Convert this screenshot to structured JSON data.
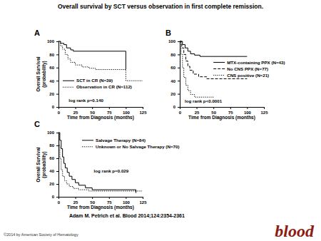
{
  "header": {
    "title": "Overall survival by SCT versus observation in first complete remission."
  },
  "chart_data": [
    {
      "type": "line",
      "panel": "A",
      "xlabel": "Time from Diagnosis (months)",
      "ylabel": [
        "Overall Survival",
        "(probability)"
      ],
      "xlim": [
        0,
        125
      ],
      "ylim": [
        0,
        100
      ],
      "xticks": [
        0,
        25,
        50,
        75,
        100,
        125
      ],
      "yticks": [
        0,
        20,
        40,
        60,
        80,
        100
      ],
      "grid": false,
      "legend": "lower-left",
      "annotation": "log rank p=0.140",
      "series": [
        {
          "name": "SCT in CR (N=39)",
          "color": "#000000",
          "line_style": "solid",
          "x": [
            0,
            3,
            8,
            12,
            18,
            22,
            100
          ],
          "values": [
            100,
            97,
            95,
            90,
            87,
            85,
            57
          ]
        },
        {
          "name": "Observation in CR (N=112)",
          "color": "#000000",
          "line_style": "dotted",
          "x": [
            0,
            3,
            6,
            10,
            14,
            18,
            25,
            35,
            45,
            55,
            100,
            125
          ],
          "values": [
            100,
            93,
            88,
            80,
            73,
            68,
            64,
            61,
            59,
            57,
            40,
            40
          ]
        }
      ]
    },
    {
      "type": "line",
      "panel": "B",
      "xlabel": "Time from Diagnosis (months)",
      "xlim": [
        0,
        125
      ],
      "ylim": [
        0,
        100
      ],
      "xticks": [
        0,
        25,
        50,
        75,
        100,
        125
      ],
      "yticks": [
        0,
        20,
        40,
        60,
        80,
        100
      ],
      "grid": false,
      "legend": "right",
      "annotation": "log rank p<0.0001",
      "series": [
        {
          "name": "MTX-containing PPX (N=43)",
          "color": "#000000",
          "line_style": "solid",
          "x": [
            0,
            4,
            8,
            12,
            16,
            22,
            30,
            100
          ],
          "values": [
            100,
            95,
            90,
            85,
            81,
            79,
            77,
            77
          ]
        },
        {
          "name": "No CNS PPX (N=77)",
          "color": "#000000",
          "line_style": "dashed",
          "x": [
            0,
            3,
            6,
            9,
            12,
            15,
            20,
            28,
            40,
            100
          ],
          "values": [
            100,
            90,
            80,
            70,
            62,
            56,
            50,
            46,
            43,
            43
          ]
        },
        {
          "name": "CNS positive (N=21)",
          "color": "#000000",
          "line_style": "dotted",
          "x": [
            0,
            2,
            4,
            6,
            9,
            12,
            16,
            22,
            50
          ],
          "values": [
            100,
            80,
            60,
            45,
            33,
            25,
            19,
            15,
            15
          ]
        }
      ]
    },
    {
      "type": "line",
      "panel": "C",
      "xlabel": "Time from Diagnosis (months)",
      "ylabel": [
        "Overall Survival",
        "(probability)"
      ],
      "xlim": [
        0,
        125
      ],
      "ylim": [
        0,
        100
      ],
      "xticks": [
        0,
        25,
        50,
        75,
        100,
        125
      ],
      "yticks": [
        0,
        20,
        40,
        60,
        80,
        100
      ],
      "grid": false,
      "legend": "upper-right",
      "annotation": "log rank p=0.029",
      "series": [
        {
          "name": "Salvage Therapy (N=84)",
          "color": "#000000",
          "line_style": "solid",
          "x": [
            0,
            2,
            4,
            6,
            8,
            10,
            13,
            16,
            20,
            25,
            30,
            40,
            50,
            110,
            115
          ],
          "values": [
            100,
            88,
            75,
            62,
            52,
            45,
            38,
            32,
            27,
            22,
            18,
            14,
            11,
            11,
            6
          ]
        },
        {
          "name": "Unknown or No Salvage Therapy (N=70)",
          "color": "#000000",
          "line_style": "dotted",
          "x": [
            0,
            1,
            2,
            4,
            6,
            9,
            12,
            16,
            22,
            30,
            45,
            125
          ],
          "values": [
            100,
            80,
            60,
            42,
            32,
            25,
            20,
            16,
            13,
            11,
            9,
            9
          ]
        }
      ]
    }
  ],
  "footer": {
    "citation": "Adam M. Petrich et al. Blood 2014;124:2354-2361",
    "copyright": "©2014 by American Society of Hematology",
    "logo": "blood"
  }
}
